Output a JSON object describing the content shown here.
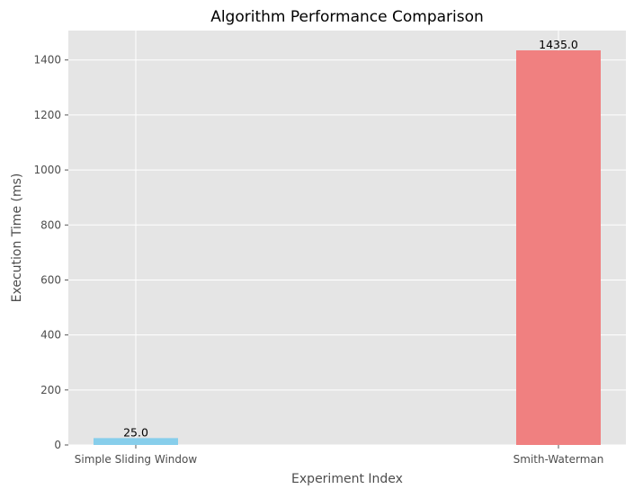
{
  "chart_data": {
    "type": "bar",
    "title": "Algorithm Performance Comparison",
    "xlabel": "Experiment Index",
    "ylabel": "Execution Time (ms)",
    "categories": [
      "Simple Sliding Window",
      "Smith-Waterman"
    ],
    "values": [
      25.0,
      1435.0
    ],
    "value_labels": [
      "25.0",
      "1435.0"
    ],
    "colors": [
      "#87ceeb",
      "#f08080"
    ],
    "ylim": [
      0,
      1507
    ],
    "yticks": [
      0,
      200,
      400,
      600,
      800,
      1000,
      1200,
      1400
    ],
    "ytick_labels": [
      "0",
      "200",
      "400",
      "600",
      "800",
      "1000",
      "1200",
      "1400"
    ],
    "grid": true,
    "background": "#e5e5e5",
    "grid_color": "#ffffff"
  }
}
